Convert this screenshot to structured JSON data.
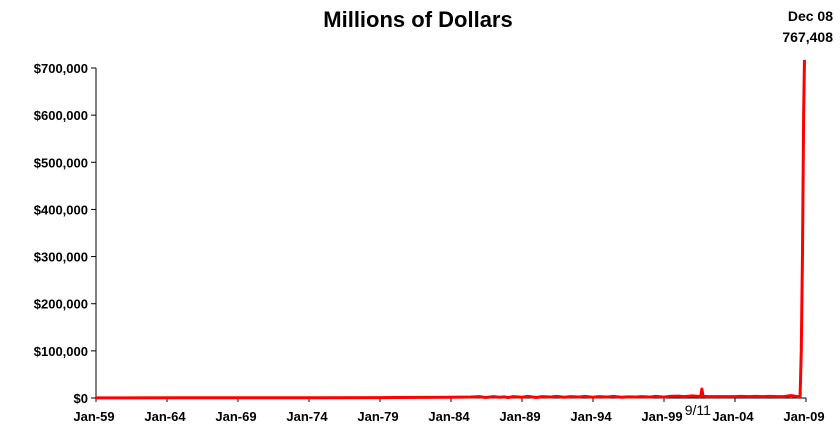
{
  "chart_data": {
    "type": "line",
    "title": "Millions of Dollars",
    "xlabel": "",
    "ylabel": "",
    "x_tick_labels": [
      "Jan-59",
      "Jan-64",
      "Jan-69",
      "Jan-74",
      "Jan-79",
      "Jan-84",
      "Jan-89",
      "Jan-94",
      "Jan-99",
      "Jan-04",
      "Jan-09"
    ],
    "y_tick_labels": [
      "$0",
      "$100,000",
      "$200,000",
      "$300,000",
      "$400,000",
      "$500,000",
      "$600,000",
      "$700,000"
    ],
    "ylim": [
      0,
      700000
    ],
    "xlim": [
      "1959-01",
      "2009-01"
    ],
    "grid": false,
    "legend": "none",
    "line_color": "#ff0000",
    "callout": {
      "label": "Dec 08",
      "value": "767,408"
    },
    "annotations": [
      {
        "text": "9/11",
        "x": "2001-09"
      }
    ],
    "series": [
      {
        "x": [
          "1959-01",
          "1965-01",
          "1970-01",
          "1975-01",
          "1980-01",
          "1984-01",
          "1985-06",
          "1986-01",
          "1986-06",
          "1987-01",
          "1987-06",
          "1987-10",
          "1988-01",
          "1988-06",
          "1989-01",
          "1989-06",
          "1990-01",
          "1990-06",
          "1991-01",
          "1991-06",
          "1992-01",
          "1992-06",
          "1993-01",
          "1993-06",
          "1994-01",
          "1994-06",
          "1995-01",
          "1995-06",
          "1996-01",
          "1996-06",
          "1997-01",
          "1997-06",
          "1998-01",
          "1998-06",
          "1999-01",
          "1999-06",
          "2000-01",
          "2000-06",
          "2001-01",
          "2001-06",
          "2001-08",
          "2001-09",
          "2001-10",
          "2002-01",
          "2002-06",
          "2003-01",
          "2003-06",
          "2004-01",
          "2004-06",
          "2005-01",
          "2005-06",
          "2006-01",
          "2006-06",
          "2007-01",
          "2007-06",
          "2007-09",
          "2007-12",
          "2008-01",
          "2008-03",
          "2008-06",
          "2008-08",
          "2008-09",
          "2008-10",
          "2008-11",
          "2008-12"
        ],
        "y": [
          300,
          400,
          500,
          600,
          1000,
          1500,
          2000,
          3000,
          1000,
          3000,
          1500,
          2500,
          1000,
          3000,
          1500,
          3500,
          1000,
          3000,
          2000,
          3500,
          1500,
          3000,
          2000,
          3500,
          1500,
          3000,
          2000,
          3500,
          1500,
          2500,
          2000,
          3000,
          2000,
          3500,
          2000,
          3500,
          4000,
          3000,
          4500,
          3500,
          3000,
          19000,
          4000,
          3000,
          3000,
          3000,
          3000,
          3000,
          3500,
          3000,
          3500,
          3000,
          3500,
          3000,
          3000,
          4000,
          5000,
          5000,
          4000,
          3000,
          3000,
          100000,
          300000,
          600000,
          767408
        ]
      }
    ]
  }
}
